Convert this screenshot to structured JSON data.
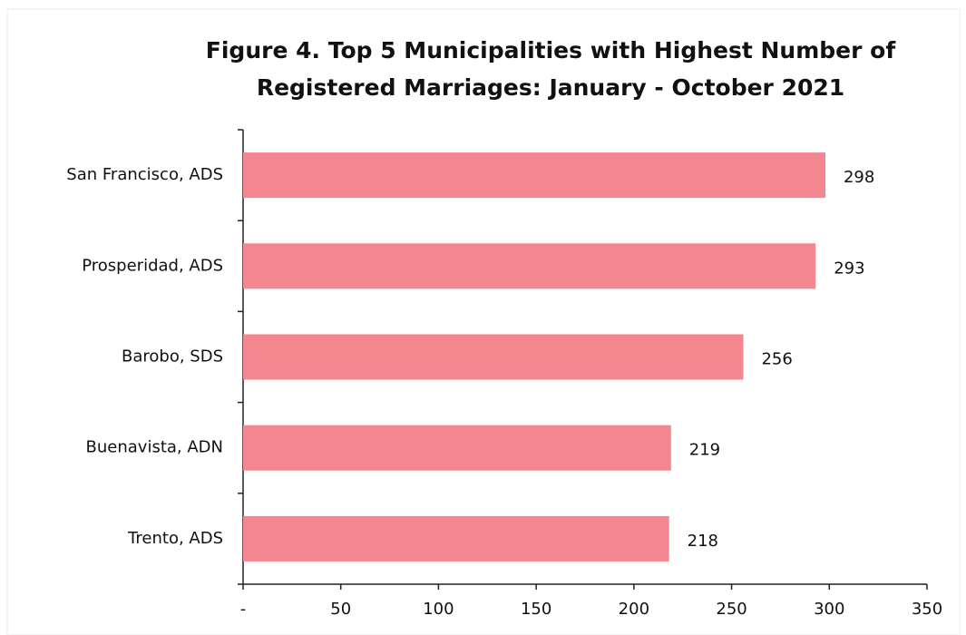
{
  "chart_data": {
    "type": "bar",
    "orientation": "horizontal",
    "title": [
      "Figure 4. Top 5 Municipalities with Highest Number of",
      "Registered Marriages: January - October 2021"
    ],
    "categories": [
      "San Francisco, ADS",
      "Prosperidad, ADS",
      "Barobo, SDS",
      "Buenavista, ADN",
      "Trento, ADS"
    ],
    "values": [
      298,
      293,
      256,
      219,
      218
    ],
    "color": "#f4868f",
    "xlim": [
      0,
      350
    ],
    "xticks": [
      {
        "value": 0,
        "label": "-"
      },
      50,
      100,
      150,
      200,
      250,
      300,
      350
    ],
    "grid": false
  }
}
